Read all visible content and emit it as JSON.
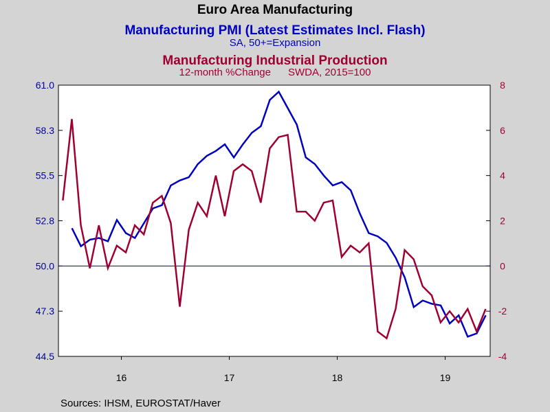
{
  "chart_data": {
    "type": "line",
    "title": "Euro Area Manufacturing",
    "subtitle_1": "Manufacturing PMI (Latest Estimates Incl. Flash)",
    "subtitle_2": "SA, 50+=Expansion",
    "subtitle_3": "Manufacturing Industrial Production",
    "subtitle_4": "12-month %Change      SWDA, 2015=100",
    "source": "Sources:  IHSM, EUROSTAT/Haver",
    "xlim": [
      2015.917,
      2019.917
    ],
    "xticks": [
      {
        "value": 2016.5,
        "label": "16"
      },
      {
        "value": 2017.5,
        "label": "17"
      },
      {
        "value": 2018.5,
        "label": "18"
      },
      {
        "value": 2019.5,
        "label": "19"
      }
    ],
    "ylim": [
      44.5,
      61.0
    ],
    "yticks": [
      {
        "value": 44.5,
        "label": "44.5"
      },
      {
        "value": 47.25,
        "label": "47.3"
      },
      {
        "value": 50,
        "label": "50.0"
      },
      {
        "value": 52.75,
        "label": "52.8"
      },
      {
        "value": 55.5,
        "label": "55.5"
      },
      {
        "value": 58.25,
        "label": "58.3"
      },
      {
        "value": 61,
        "label": "61.0"
      }
    ],
    "y2lim": [
      -4,
      8
    ],
    "y2ticks": [
      -4,
      -2,
      0,
      2,
      4,
      6,
      8
    ],
    "hline": 50,
    "series": [
      {
        "name": "Manufacturing PMI",
        "color": "#0000c0",
        "axis": "y",
        "start": 2016.042,
        "values": [
          52.3,
          51.2,
          51.6,
          51.7,
          51.5,
          52.8,
          52.0,
          51.7,
          52.6,
          53.5,
          53.7,
          54.9,
          55.2,
          55.4,
          56.2,
          56.7,
          57.0,
          57.4,
          56.6,
          57.4,
          58.1,
          58.5,
          60.1,
          60.6,
          59.6,
          58.6,
          56.6,
          56.2,
          55.5,
          54.9,
          55.1,
          54.6,
          53.2,
          52.0,
          51.8,
          51.4,
          50.5,
          49.3,
          47.5,
          47.9,
          47.7,
          47.6,
          46.5,
          47.0,
          45.7,
          45.9,
          47.0
        ]
      },
      {
        "name": "Manufacturing Industrial Production",
        "color": "#a00030",
        "axis": "y2",
        "start": 2015.958,
        "values": [
          2.9,
          6.5,
          1.8,
          -0.1,
          1.8,
          -0.1,
          0.9,
          0.6,
          1.8,
          1.4,
          2.8,
          3.1,
          1.9,
          -1.8,
          1.6,
          2.8,
          2.2,
          4.0,
          2.2,
          4.2,
          4.5,
          4.2,
          2.8,
          5.2,
          5.7,
          5.8,
          2.4,
          2.4,
          2.0,
          2.8,
          2.9,
          0.4,
          0.9,
          0.6,
          1.0,
          -2.9,
          -3.2,
          -1.9,
          0.7,
          0.3,
          -0.9,
          -1.3,
          -2.5,
          -2.0,
          -2.5,
          -1.9,
          -2.9,
          -1.9
        ]
      }
    ]
  }
}
